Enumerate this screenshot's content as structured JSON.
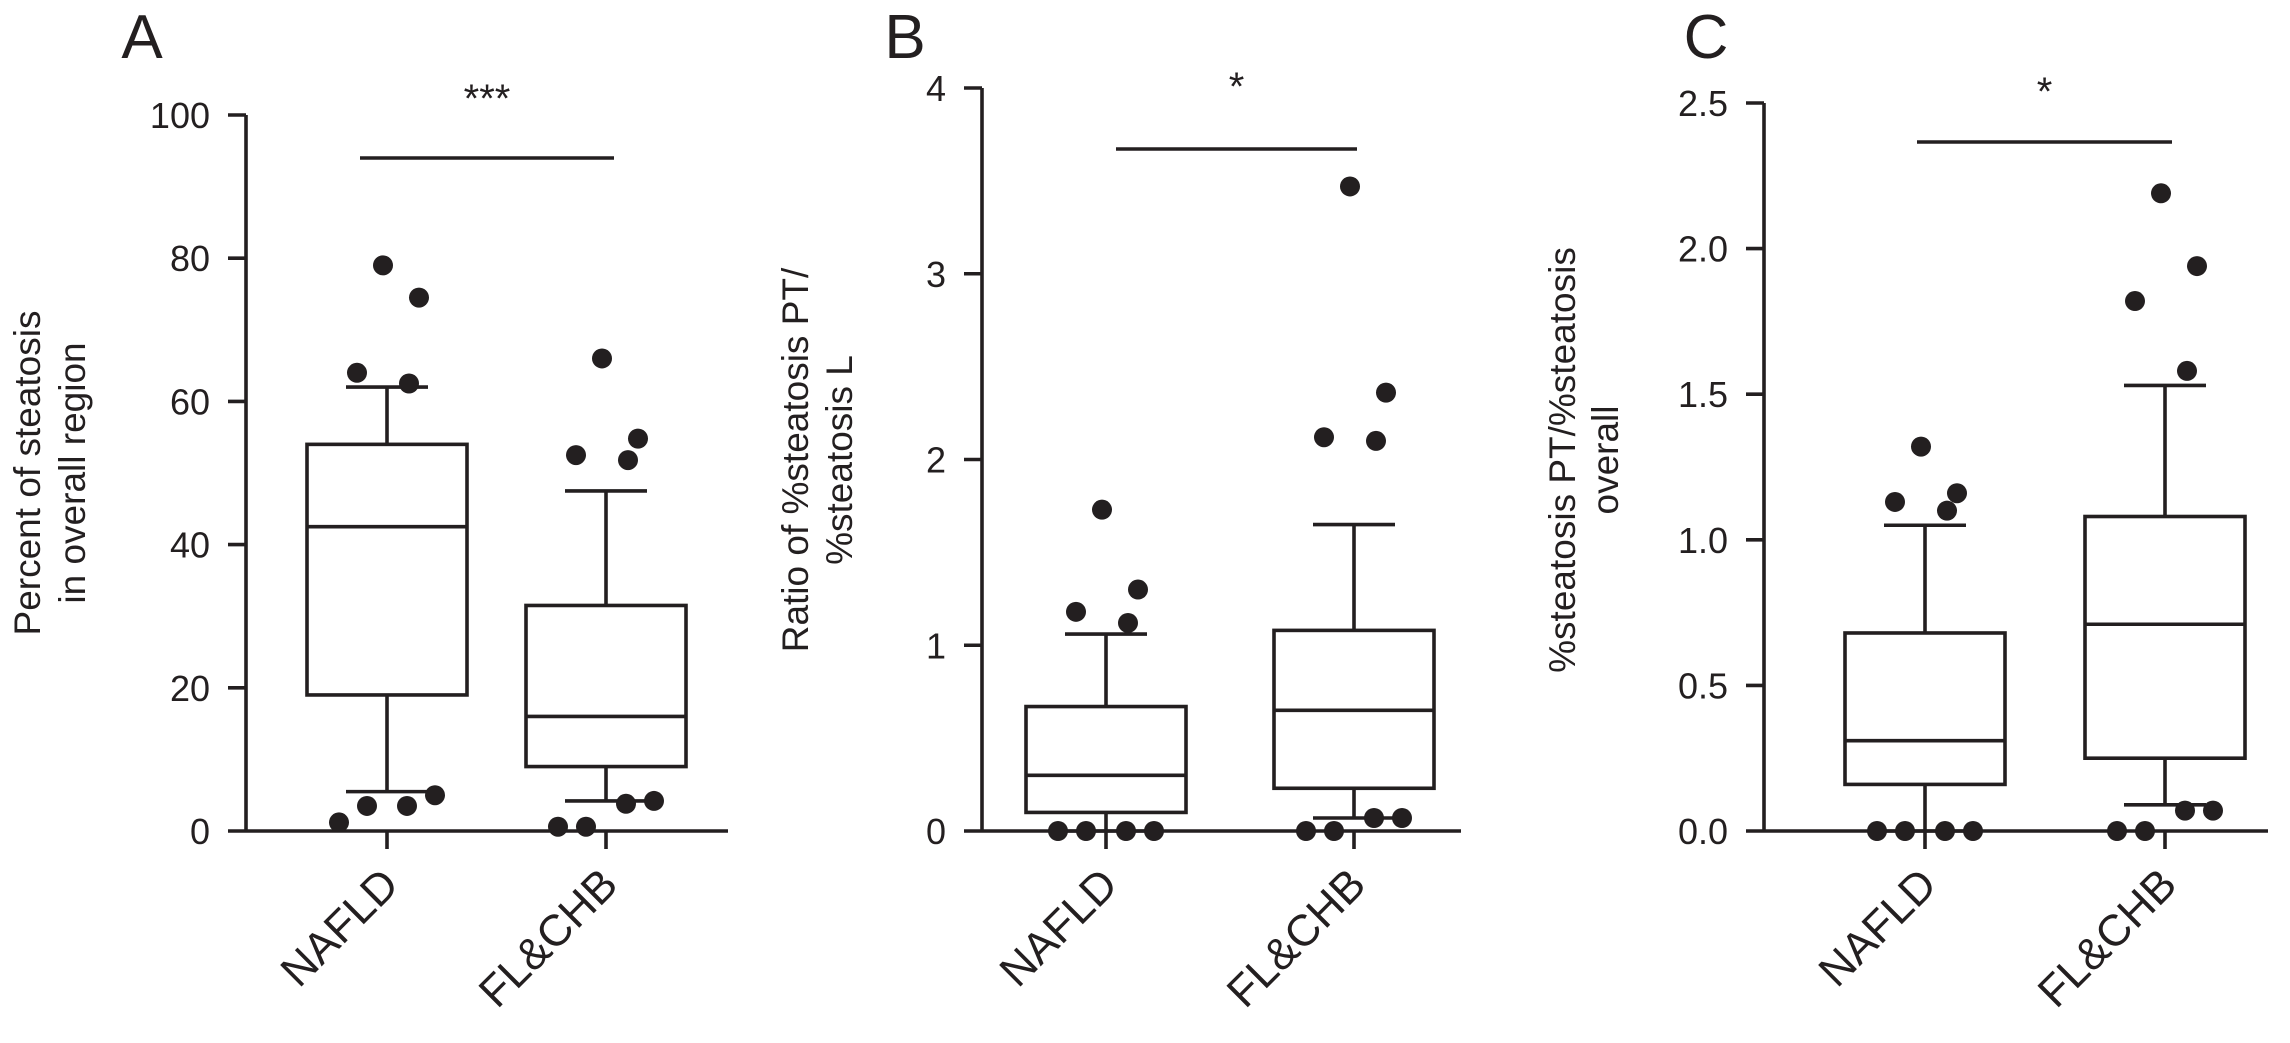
{
  "colors": {
    "ink": "#231f20",
    "background": "#ffffff",
    "box_fill": "#ffffff"
  },
  "chart_data": [
    {
      "panel": "A",
      "type": "box",
      "categories": [
        "NAFLD",
        "FL&CHB"
      ],
      "ylabel_lines": [
        "Percent of steatosis",
        "in overall region"
      ],
      "ylim": [
        0,
        100
      ],
      "yticks": [
        0,
        20,
        40,
        60,
        80,
        100
      ],
      "ytick_labels": [
        "0",
        "20",
        "40",
        "60",
        "80",
        "100"
      ],
      "boxes": [
        {
          "category": "NAFLD",
          "whisker_low": 5.5,
          "q1": 19,
          "median": 42.5,
          "q3": 54,
          "whisker_high": 62,
          "outliers": [
            1.2,
            3.5,
            3.5,
            5.0,
            62.5,
            64,
            74.5,
            79
          ]
        },
        {
          "category": "FL&CHB",
          "whisker_low": 4.2,
          "q1": 9,
          "median": 16,
          "q3": 31.5,
          "whisker_high": 47.5,
          "outliers": [
            0.6,
            0.6,
            3.8,
            4.2,
            51.8,
            52.5,
            54.8,
            66
          ]
        }
      ],
      "significance": "***",
      "grid": false
    },
    {
      "panel": "B",
      "type": "box",
      "categories": [
        "NAFLD",
        "FL&CHB"
      ],
      "ylabel_lines": [
        "Ratio of %steatosis PT/",
        "%steatosis L"
      ],
      "ylim": [
        0,
        4
      ],
      "yticks": [
        0,
        1,
        2,
        3,
        4
      ],
      "ytick_labels": [
        "0",
        "1",
        "2",
        "3",
        "4"
      ],
      "boxes": [
        {
          "category": "NAFLD",
          "whisker_low": 0,
          "q1": 0.1,
          "median": 0.3,
          "q3": 0.67,
          "whisker_high": 1.06,
          "outliers": [
            0,
            0,
            0,
            0,
            1.12,
            1.18,
            1.3,
            1.73
          ]
        },
        {
          "category": "FL&CHB",
          "whisker_low": 0.07,
          "q1": 0.23,
          "median": 0.65,
          "q3": 1.08,
          "whisker_high": 1.65,
          "outliers": [
            0,
            0,
            0.07,
            0.07,
            2.1,
            2.12,
            2.36,
            3.47
          ]
        }
      ],
      "significance": "*",
      "grid": false
    },
    {
      "panel": "C",
      "type": "box",
      "categories": [
        "NAFLD",
        "FL&CHB"
      ],
      "ylabel_lines": [
        "%steatosis PT/%steatosis",
        "overall"
      ],
      "ylim": [
        0,
        2.5
      ],
      "yticks": [
        0,
        0.5,
        1,
        1.5,
        2,
        2.5
      ],
      "ytick_labels": [
        "0.0",
        "0.5",
        "1.0",
        "1.5",
        "2.0",
        "2.5"
      ],
      "boxes": [
        {
          "category": "NAFLD",
          "whisker_low": 0,
          "q1": 0.16,
          "median": 0.31,
          "q3": 0.68,
          "whisker_high": 1.05,
          "outliers": [
            0,
            0,
            0,
            0,
            1.1,
            1.13,
            1.16,
            1.32
          ]
        },
        {
          "category": "FL&CHB",
          "whisker_low": 0.09,
          "q1": 0.25,
          "median": 0.71,
          "q3": 1.08,
          "whisker_high": 1.53,
          "outliers": [
            0,
            0,
            0.07,
            0.07,
            1.58,
            1.82,
            1.94,
            2.19
          ]
        }
      ],
      "significance": "*",
      "grid": false
    }
  ]
}
